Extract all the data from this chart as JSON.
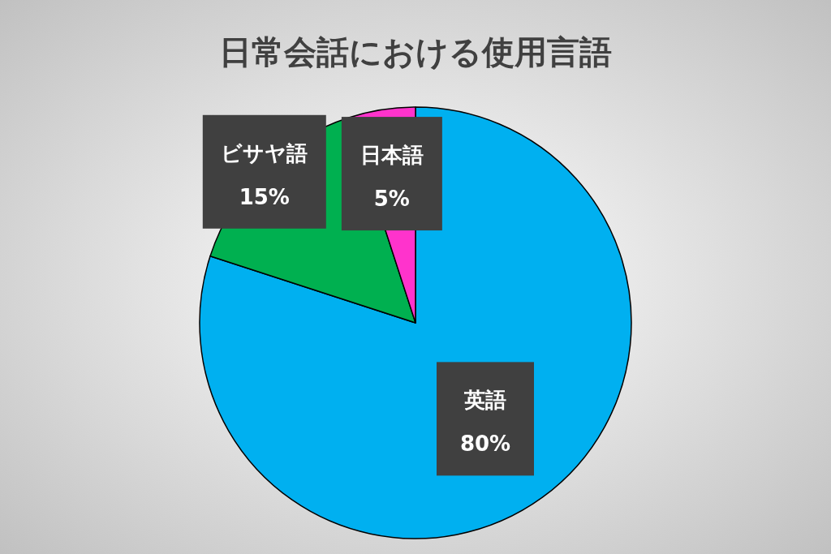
{
  "chart_data": {
    "type": "pie",
    "title": "日常会話における使用言語",
    "categories": [
      "英語",
      "ビサヤ語",
      "日本語"
    ],
    "values": [
      80,
      15,
      5
    ],
    "value_labels": [
      "80%",
      "15%",
      "5%"
    ],
    "colors": [
      "#00b0f0",
      "#00b050",
      "#ff33cc"
    ]
  }
}
